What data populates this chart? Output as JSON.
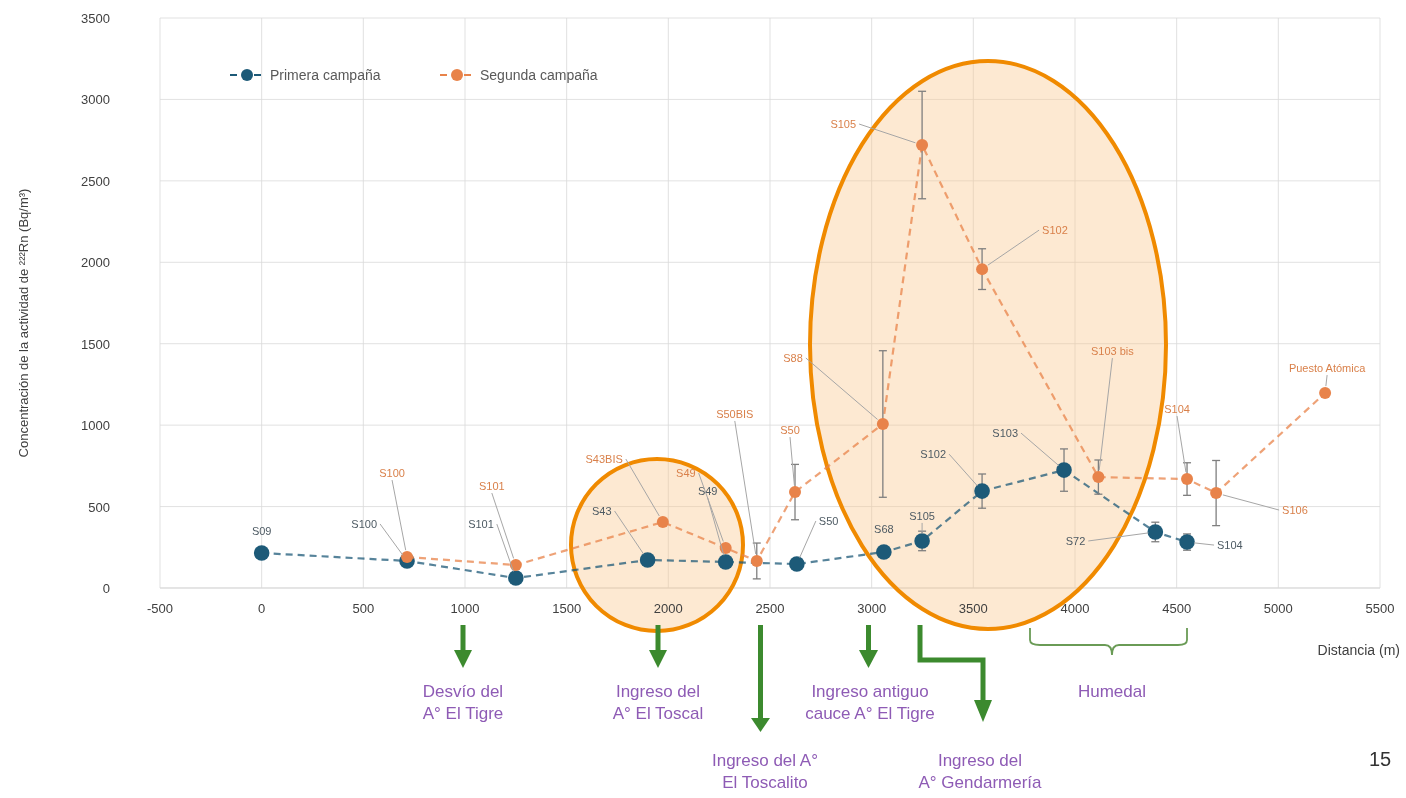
{
  "chart_data": {
    "type": "line",
    "xlabel": "Distancia (m)",
    "ylabel": "Concentración de la actividad de ²²²Rn (Bq/m³)",
    "xlim": [
      -500,
      5500
    ],
    "xticks": [
      -500,
      0,
      500,
      1000,
      1500,
      2000,
      2500,
      3000,
      3500,
      4000,
      4500,
      5000,
      5500
    ],
    "ylim": [
      0,
      3500
    ],
    "yticks": [
      0,
      500,
      1000,
      1500,
      2000,
      2500,
      3000,
      3500
    ],
    "grid": true,
    "legend": "top left",
    "marker": "circle",
    "line_style": "dashed",
    "series": [
      {
        "name": "Primera campaña",
        "color": "#1d5a78",
        "x": [
          0,
          715,
          1250,
          1898,
          2282,
          2632,
          3060,
          3248,
          3543,
          3946,
          4395,
          4551
        ],
        "values": [
          215,
          166,
          61,
          172,
          160,
          147,
          221,
          289,
          595,
          724,
          344,
          282
        ],
        "errors": [
          null,
          null,
          null,
          null,
          null,
          null,
          null,
          60,
          105,
          130,
          60,
          50
        ]
      },
      {
        "name": "Segunda campaña",
        "color": "#e8834a",
        "x": [
          715,
          1250,
          1973,
          2282,
          2435,
          2623,
          3055,
          3248,
          3543,
          4115,
          4551,
          4694,
          5230
        ],
        "values": [
          190,
          141,
          405,
          245,
          166,
          589,
          1007,
          2720,
          1958,
          681,
          669,
          583,
          1197
        ],
        "errors": [
          null,
          null,
          null,
          null,
          110,
          170,
          450,
          330,
          125,
          105,
          100,
          200,
          null
        ]
      }
    ],
    "annotations": [
      {
        "text": "S09",
        "x": 0,
        "y": 215
      },
      {
        "text": "S100",
        "x": 715,
        "y": 166
      },
      {
        "text": "S101",
        "x": 1250,
        "y": 61
      },
      {
        "text": "S43",
        "x": 1898,
        "y": 172
      },
      {
        "text": "S49",
        "x": 2282,
        "y": 160
      },
      {
        "text": "S50",
        "x": 2632,
        "y": 147
      },
      {
        "text": "S68",
        "x": 3060,
        "y": 221
      },
      {
        "text": "S105",
        "x": 3248,
        "y": 289
      },
      {
        "text": "S102",
        "x": 3543,
        "y": 595
      },
      {
        "text": "S103",
        "x": 3946,
        "y": 724
      },
      {
        "text": "S72",
        "x": 4395,
        "y": 344
      },
      {
        "text": "S104",
        "x": 4551,
        "y": 282
      },
      {
        "text": "S100",
        "x": 715,
        "y": 190
      },
      {
        "text": "S101",
        "x": 1250,
        "y": 141
      },
      {
        "text": "S43BIS",
        "x": 1973,
        "y": 405
      },
      {
        "text": "S49",
        "x": 2282,
        "y": 245
      },
      {
        "text": "S50BIS",
        "x": 2435,
        "y": 166
      },
      {
        "text": "S50",
        "x": 2623,
        "y": 589
      },
      {
        "text": "S88",
        "x": 3055,
        "y": 1007
      },
      {
        "text": "S105",
        "x": 3248,
        "y": 2720
      },
      {
        "text": "S102",
        "x": 3543,
        "y": 1958
      },
      {
        "text": "S103 bis",
        "x": 4115,
        "y": 681
      },
      {
        "text": "S104",
        "x": 4551,
        "y": 669
      },
      {
        "text": "S106",
        "x": 4694,
        "y": 583
      },
      {
        "text": "Puesto Atómica",
        "x": 5230,
        "y": 1197
      },
      "Desvío  del A° El Tigre",
      "Ingreso del A° El Toscal",
      "Ingreso del A° El Toscalito",
      "Ingreso antiguo cauce A° El Tigre",
      "Ingreso del A° Gendarmería",
      "Humedal",
      "15"
    ]
  }
}
